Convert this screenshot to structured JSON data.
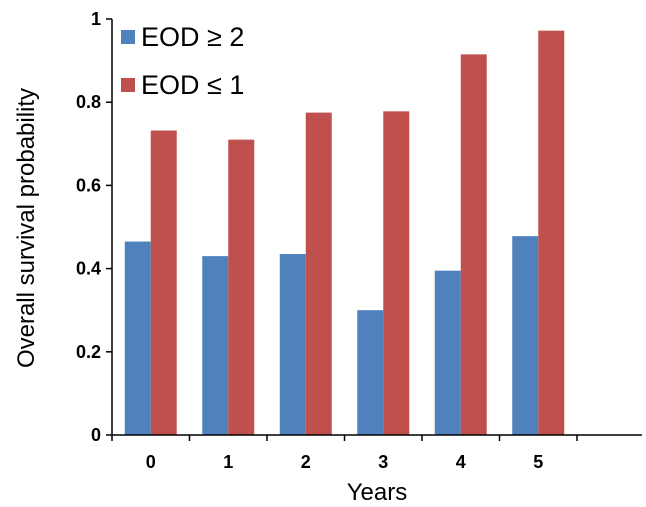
{
  "chart_data": {
    "type": "bar",
    "title": "",
    "xlabel": "Years",
    "ylabel": "Overall survival probability",
    "categories": [
      "0",
      "1",
      "2",
      "3",
      "4",
      "5"
    ],
    "series": [
      {
        "name": "EOD ≥ 2",
        "color": "#4F81BD",
        "values": [
          0.465,
          0.43,
          0.435,
          0.3,
          0.395,
          0.478
        ]
      },
      {
        "name": "EOD ≤ 1",
        "color": "#C0504D",
        "values": [
          0.732,
          0.71,
          0.775,
          0.778,
          0.915,
          0.972
        ]
      }
    ],
    "ylim": [
      0,
      1
    ],
    "yticks": [
      0,
      0.2,
      0.4,
      0.6,
      0.8,
      1
    ],
    "ytick_labels": [
      "0",
      "0.2",
      "0.4",
      "0.6",
      "0.8",
      "1"
    ],
    "grid": false,
    "legend_position": "top-left"
  }
}
